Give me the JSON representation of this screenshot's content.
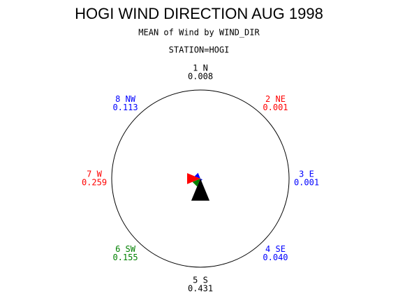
{
  "chart_data": {
    "type": "star",
    "title": "HOGI WIND DIRECTION AUG 1998",
    "subtitle": "MEAN of Wind by WIND_DIR",
    "station": "STATION=HOGI",
    "categories": [
      "1 N",
      "2 NE",
      "3 E",
      "4 SE",
      "5 S",
      "6 SW",
      "7 W",
      "8 NW"
    ],
    "values": [
      0.008,
      0.001,
      0.001,
      0.04,
      0.431,
      0.155,
      0.259,
      0.113
    ],
    "value_labels": [
      "0.008",
      "0.001",
      "0.001",
      "0.040",
      "0.431",
      "0.155",
      "0.259",
      "0.113"
    ],
    "colors": [
      "#000000",
      "#ff0000",
      "#0000ff",
      "#0000ff",
      "#000000",
      "#008000",
      "#ff0000",
      "#0000ff"
    ],
    "rlim": [
      0,
      1.6
    ]
  }
}
